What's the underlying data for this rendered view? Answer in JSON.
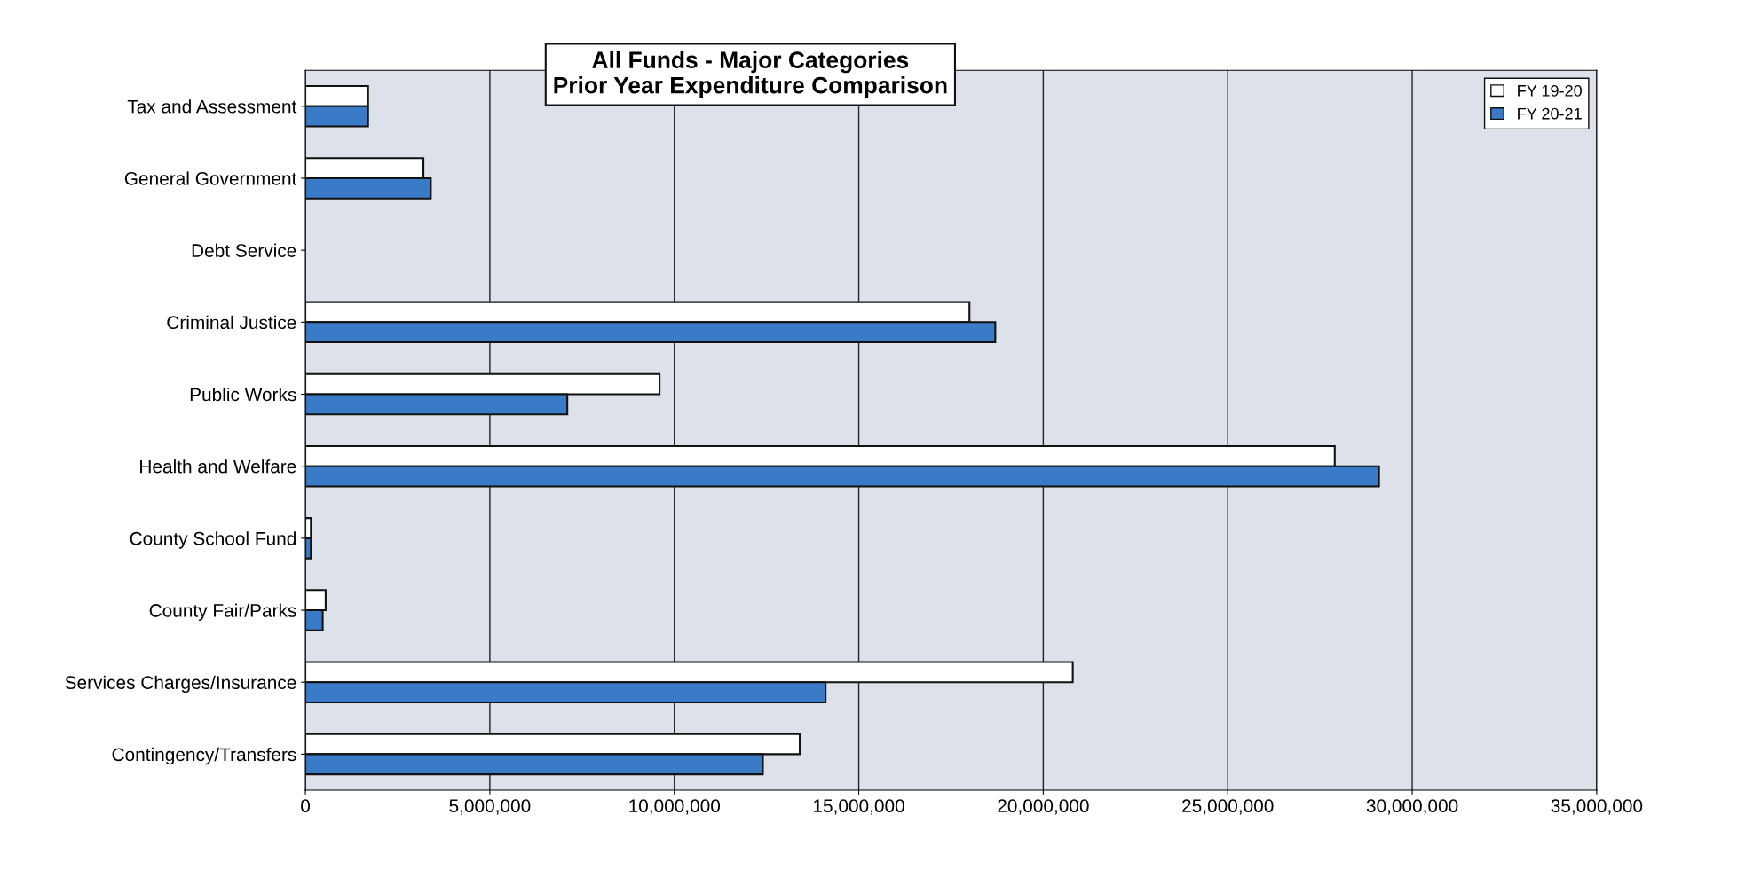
{
  "chart_data": {
    "type": "bar",
    "orientation": "horizontal",
    "title": "All Funds - Major Categories\nPrior Year Expenditure Comparison",
    "categories": [
      "Tax and Assessment",
      "General Government",
      "Debt Service",
      "Criminal Justice",
      "Public Works",
      "Health and Welfare",
      "County School Fund",
      "County Fair/Parks",
      "Services Charges/Insurance",
      "Contingency/Transfers"
    ],
    "series": [
      {
        "name": "FY 19-20",
        "color": "#ffffff",
        "values": [
          1700000,
          3200000,
          0,
          18000000,
          9600000,
          27900000,
          150000,
          550000,
          20800000,
          13400000
        ]
      },
      {
        "name": "FY 20-21",
        "color": "#3a7bc8",
        "values": [
          1700000,
          3400000,
          0,
          18700000,
          7100000,
          29100000,
          150000,
          470000,
          14100000,
          12400000
        ]
      }
    ],
    "xlim": [
      0,
      35000000
    ],
    "xticks": [
      {
        "value": 0,
        "label": "0"
      },
      {
        "value": 5000000,
        "label": "5,000,000"
      },
      {
        "value": 10000000,
        "label": "10,000,000"
      },
      {
        "value": 15000000,
        "label": "15,000,000"
      },
      {
        "value": 20000000,
        "label": "20,000,000"
      },
      {
        "value": 25000000,
        "label": "25,000,000"
      },
      {
        "value": 30000000,
        "label": "30,000,000"
      },
      {
        "value": 35000000,
        "label": "35,000,000"
      }
    ],
    "grid": "x",
    "legend": "top right"
  }
}
